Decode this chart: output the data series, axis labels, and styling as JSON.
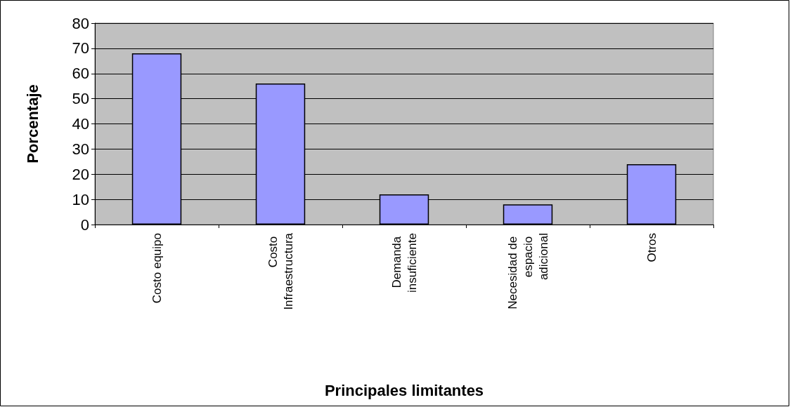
{
  "chart_data": {
    "type": "bar",
    "xlabel": "Principales limitantes",
    "ylabel": "Porcentaje",
    "categories": [
      "Costo equipo",
      "Costo Infraestructura",
      "Demanda insuficiente",
      "Necesidad de espacio adicional",
      "Otros"
    ],
    "values": [
      68,
      56,
      12,
      8,
      24
    ],
    "color": "#9999ff",
    "ylim": [
      0,
      80
    ],
    "yticks": [
      0,
      10,
      20,
      30,
      40,
      50,
      60,
      70,
      80
    ],
    "grid": "y"
  }
}
